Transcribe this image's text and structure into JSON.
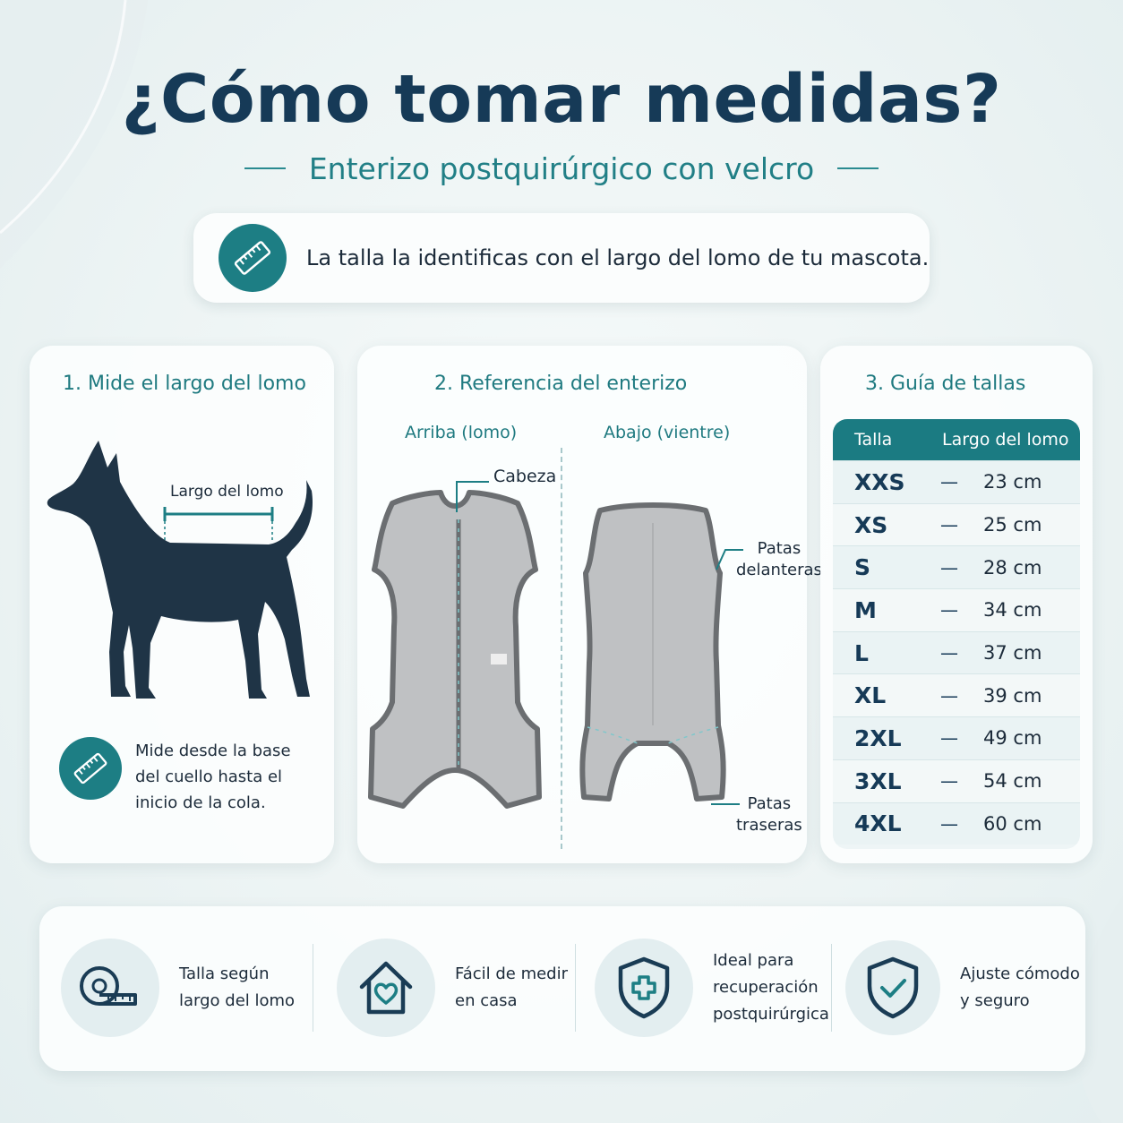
{
  "header": {
    "title": "¿Cómo tomar medidas?",
    "subtitle": "Enterizo postquirúrgico con velcro"
  },
  "banner": {
    "icon": "ruler-icon",
    "text": "La talla la identificas con el largo del lomo de tu mascota."
  },
  "step1": {
    "title": "1.  Mide el largo del lomo",
    "measure_label": "Largo del lomo",
    "icon": "ruler-icon",
    "instruction_lines": [
      "Mide desde la base",
      "del cuello hasta el",
      "inicio de la cola."
    ]
  },
  "step2": {
    "title": "2. Referencia del enterizo",
    "left_label": "Arriba (lomo)",
    "right_label": "Abajo (vientre)",
    "callout_head": "Cabeza",
    "callout_front_legs": [
      "Patas",
      "delanteras"
    ],
    "callout_back_legs": [
      "Patas",
      "traseras"
    ]
  },
  "step3": {
    "title": "3. Guía de tallas",
    "columns": [
      "Talla",
      "Largo del lomo"
    ],
    "dash": "—",
    "rows": [
      {
        "size": "XXS",
        "length": "23 cm"
      },
      {
        "size": "XS",
        "length": "25 cm"
      },
      {
        "size": "S",
        "length": "28 cm"
      },
      {
        "size": "M",
        "length": "34 cm"
      },
      {
        "size": "L",
        "length": "37 cm"
      },
      {
        "size": "XL",
        "length": "39 cm"
      },
      {
        "size": "2XL",
        "length": "49 cm"
      },
      {
        "size": "3XL",
        "length": "54 cm"
      },
      {
        "size": "4XL",
        "length": "60 cm"
      }
    ]
  },
  "features": [
    {
      "icon": "measuring-tape-icon",
      "lines": [
        "Talla según",
        "largo del lomo"
      ]
    },
    {
      "icon": "house-heart-icon",
      "lines": [
        "Fácil de medir",
        "en casa"
      ]
    },
    {
      "icon": "shield-plus-icon",
      "lines": [
        "Ideal para",
        "recuperación",
        "postquirúrgica"
      ]
    },
    {
      "icon": "shield-check-icon",
      "lines": [
        "Ajuste cómodo",
        "y seguro"
      ]
    }
  ],
  "colors": {
    "accent": "#1d7e84",
    "title": "#163a57",
    "garment": "#bfc1c3",
    "garment_trim": "#6b6e71",
    "dog": "#1f3446"
  }
}
